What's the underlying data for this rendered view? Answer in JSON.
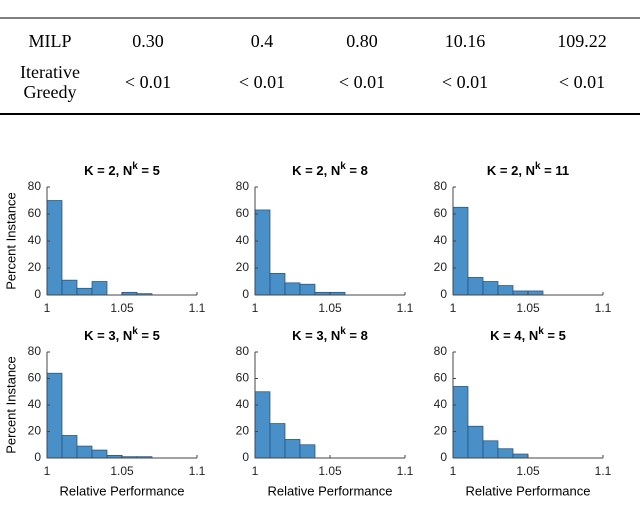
{
  "table": {
    "rows": [
      [
        "MILP",
        "0.30",
        "0.4",
        "0.80",
        "10.16",
        "109.22"
      ],
      [
        [
          "Iterative",
          "Greedy"
        ],
        "< 0.01",
        "< 0.01",
        "< 0.01",
        "< 0.01",
        "< 0.01"
      ]
    ]
  },
  "chart_data": [
    {
      "type": "histogram",
      "title_parts": [
        "K = 2, N",
        "k",
        " = 5"
      ],
      "ylabel": "Percent Instance",
      "bins": [
        1,
        1.01,
        1.02,
        1.03,
        1.04,
        1.05,
        1.06,
        1.07,
        1.08,
        1.09,
        1.1
      ],
      "values": [
        70,
        11,
        5,
        10,
        0,
        2,
        1,
        0,
        0,
        0
      ],
      "color": "#4a90c8",
      "xlim": [
        1,
        1.1
      ],
      "xticks": [
        1,
        1.05,
        1.1
      ],
      "ylim": [
        0,
        80
      ],
      "yticks": [
        0,
        20,
        40,
        60,
        80
      ]
    },
    {
      "type": "histogram",
      "title_parts": [
        "K = 2, N",
        "k",
        " = 8"
      ],
      "bins": [
        1,
        1.01,
        1.02,
        1.03,
        1.04,
        1.05,
        1.06,
        1.07,
        1.08,
        1.09,
        1.1
      ],
      "values": [
        63,
        16,
        9,
        8,
        2,
        2,
        0,
        0,
        0,
        0
      ],
      "color": "#4a90c8",
      "xlim": [
        1,
        1.1
      ],
      "xticks": [
        1,
        1.05,
        1.1
      ],
      "ylim": [
        0,
        80
      ],
      "yticks": [
        0,
        20,
        40,
        60,
        80
      ]
    },
    {
      "type": "histogram",
      "title_parts": [
        "K = 2, N",
        "k",
        " = 11"
      ],
      "bins": [
        1,
        1.01,
        1.02,
        1.03,
        1.04,
        1.05,
        1.06,
        1.07,
        1.08,
        1.09,
        1.1
      ],
      "values": [
        65,
        13,
        10,
        7,
        3,
        3,
        0,
        0,
        0,
        0
      ],
      "color": "#4a90c8",
      "xlim": [
        1,
        1.1
      ],
      "xticks": [
        1,
        1.05,
        1.1
      ],
      "ylim": [
        0,
        80
      ],
      "yticks": [
        0,
        20,
        40,
        60,
        80
      ]
    },
    {
      "type": "histogram",
      "title_parts": [
        "K = 3, N",
        "k",
        " = 5"
      ],
      "ylabel": "Percent Instance",
      "xlabel": "Relative Performance",
      "bins": [
        1,
        1.01,
        1.02,
        1.03,
        1.04,
        1.05,
        1.06,
        1.07,
        1.08,
        1.09,
        1.1
      ],
      "values": [
        64,
        17,
        9,
        6,
        2,
        1,
        1,
        0,
        0,
        0
      ],
      "color": "#4a90c8",
      "xlim": [
        1,
        1.1
      ],
      "xticks": [
        1,
        1.05,
        1.1
      ],
      "ylim": [
        0,
        80
      ],
      "yticks": [
        0,
        20,
        40,
        60,
        80
      ]
    },
    {
      "type": "histogram",
      "title_parts": [
        "K = 3, N",
        "k",
        " = 8"
      ],
      "xlabel": "Relative Performance",
      "bins": [
        1,
        1.01,
        1.02,
        1.03,
        1.04,
        1.05,
        1.06,
        1.07,
        1.08,
        1.09,
        1.1
      ],
      "values": [
        50,
        26,
        14,
        10,
        0,
        0,
        0,
        0,
        0,
        0
      ],
      "color": "#4a90c8",
      "xlim": [
        1,
        1.1
      ],
      "xticks": [
        1,
        1.05,
        1.1
      ],
      "ylim": [
        0,
        80
      ],
      "yticks": [
        0,
        20,
        40,
        60,
        80
      ]
    },
    {
      "type": "histogram",
      "title_parts": [
        "K = 4, N",
        "k",
        " = 5"
      ],
      "xlabel": "Relative Performance",
      "bins": [
        1,
        1.01,
        1.02,
        1.03,
        1.04,
        1.05,
        1.06,
        1.07,
        1.08,
        1.09,
        1.1
      ],
      "values": [
        54,
        24,
        13,
        7,
        3,
        0,
        0,
        0,
        0,
        0
      ],
      "color": "#4a90c8",
      "xlim": [
        1,
        1.1
      ],
      "xticks": [
        1,
        1.05,
        1.1
      ],
      "ylim": [
        0,
        80
      ],
      "yticks": [
        0,
        20,
        40,
        60,
        80
      ]
    }
  ]
}
